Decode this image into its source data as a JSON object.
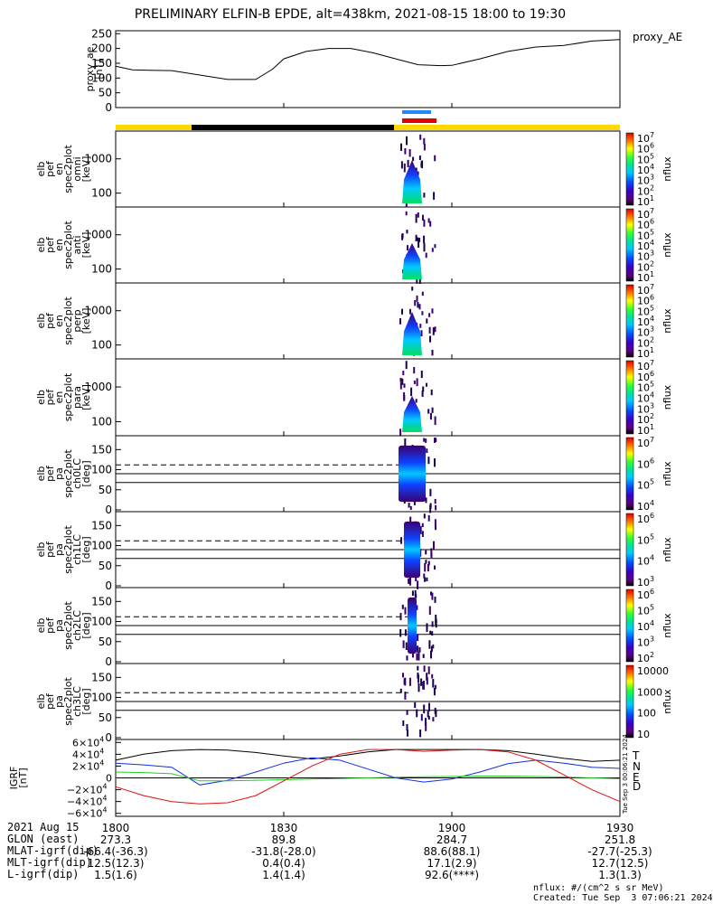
{
  "title": "PRELIMINARY ELFIN-B EPDE, alt=438km, 2021-08-15 18:00 to 19:30",
  "colors": {
    "phase_yellow": "#ffd800",
    "phase_black": "#000000",
    "marker_blue": "#1e88ff",
    "marker_red": "#e00000",
    "grf_T": "#000000",
    "grf_N": "#1030e0",
    "grf_E": "#22cc22",
    "grf_D": "#dd1111"
  },
  "chart_data": [
    {
      "type": "line",
      "name": "proxy_ae",
      "ylabel": "proxy_ae\n[nT]",
      "legend": "proxy_AE",
      "ylim": [
        0,
        260
      ],
      "yticks": [
        "250",
        "200",
        "150",
        "100",
        "50",
        "0"
      ],
      "x": [
        1800,
        1803,
        1806,
        1810,
        1815,
        1820,
        1825,
        1828,
        1830,
        1834,
        1838,
        1842,
        1846,
        1850,
        1854,
        1858,
        1900,
        1905,
        1910,
        1915,
        1920,
        1925,
        1930
      ],
      "values": [
        140,
        128,
        126,
        125,
        110,
        95,
        95,
        130,
        165,
        190,
        200,
        200,
        185,
        165,
        145,
        142,
        143,
        165,
        190,
        205,
        210,
        225,
        230
      ]
    },
    {
      "type": "heatmap",
      "name": "elb pef en spec2plot omni",
      "ylabel": "elb\npef\nen\nspec2plot\nomni\n[keV]",
      "scale": "log",
      "yticks": [
        "1000",
        "100"
      ],
      "zlabel": "nflux",
      "zticks": [
        "10^7",
        "10^6",
        "10^5",
        "10^4",
        "10^3",
        "10^2",
        "10^1"
      ]
    },
    {
      "type": "heatmap",
      "name": "elb pef en spec2plot anti",
      "ylabel": "elb\npef\nen\nspec2plot\nanti\n[keV]",
      "scale": "log",
      "yticks": [
        "1000",
        "100"
      ],
      "zlabel": "nflux",
      "zticks": [
        "10^7",
        "10^6",
        "10^5",
        "10^4",
        "10^3",
        "10^2",
        "10^1"
      ]
    },
    {
      "type": "heatmap",
      "name": "elb pef en spec2plot perp",
      "ylabel": "elb\npef\nen\nspec2plot\nperp\n[keV]",
      "scale": "log",
      "yticks": [
        "1000",
        "100"
      ],
      "zlabel": "nflux",
      "zticks": [
        "10^7",
        "10^6",
        "10^5",
        "10^4",
        "10^3",
        "10^2",
        "10^1"
      ]
    },
    {
      "type": "heatmap",
      "name": "elb pef en spec2plot para",
      "ylabel": "elb\npef\nen\nspec2plot\npara\n[keV]",
      "scale": "log",
      "yticks": [
        "1000",
        "100"
      ],
      "zlabel": "nflux",
      "zticks": [
        "10^7",
        "10^6",
        "10^5",
        "10^4",
        "10^3",
        "10^2",
        "10^1"
      ]
    },
    {
      "type": "heatmap",
      "name": "elb pef pa spec2plot ch0LC",
      "ylabel": "elb\npef\npa\nspec2plot\nch0LC\n[deg]",
      "ylim": [
        0,
        180
      ],
      "yticks": [
        "150",
        "100",
        "50",
        "0"
      ],
      "zlabel": "nflux",
      "zticks": [
        "10^7",
        "10^6",
        "10^5",
        "10^4"
      ]
    },
    {
      "type": "heatmap",
      "name": "elb pef pa spec2plot ch1LC",
      "ylabel": "elb\npef\npa\nspec2plot\nch1LC\n[deg]",
      "ylim": [
        0,
        180
      ],
      "yticks": [
        "150",
        "100",
        "50",
        "0"
      ],
      "zlabel": "nflux",
      "zticks": [
        "10^6",
        "10^5",
        "10^4",
        "10^3"
      ]
    },
    {
      "type": "heatmap",
      "name": "elb pef pa spec2plot ch2LC",
      "ylabel": "elb\npef\npa\nspec2plot\nch2LC\n[deg]",
      "ylim": [
        0,
        180
      ],
      "yticks": [
        "150",
        "100",
        "50",
        "0"
      ],
      "zlabel": "nflux",
      "zticks": [
        "10^6",
        "10^5",
        "10^4",
        "10^3",
        "10^2"
      ]
    },
    {
      "type": "heatmap",
      "name": "elb pef pa spec2plot ch3LC",
      "ylabel": "elb\npef\npa\nspec2plot\nch3LC\n[deg]",
      "ylim": [
        0,
        180
      ],
      "yticks": [
        "150",
        "100",
        "50",
        "0"
      ],
      "zlabel": "nflux",
      "zticks": [
        "10000",
        "1000",
        "100",
        "10"
      ]
    },
    {
      "type": "line",
      "name": "IGRF",
      "ylabel": "IGRF\n[nT]",
      "ylim": [
        -65000,
        65000
      ],
      "yticks": [
        "6×10^4",
        "4×10^4",
        "2×10^4",
        "0",
        "−2×10^4",
        "−4×10^4",
        "−6×10^4"
      ],
      "legend": [
        "T",
        "N",
        "E",
        "D"
      ],
      "side_stamp": "Tue Sep  3 00:06:21 2024",
      "x": [
        1800,
        1805,
        1810,
        1815,
        1820,
        1825,
        1830,
        1835,
        1840,
        1845,
        1850,
        1855,
        1900,
        1905,
        1910,
        1915,
        1920,
        1925,
        1930
      ],
      "series": [
        {
          "name": "T",
          "values": [
            30000,
            40000,
            46000,
            48000,
            47000,
            43000,
            37000,
            32000,
            37000,
            44000,
            48000,
            48000,
            48000,
            48000,
            46000,
            40000,
            33000,
            28000,
            30000
          ]
        },
        {
          "name": "N",
          "values": [
            25000,
            22000,
            18000,
            -12000,
            -4000,
            10000,
            25000,
            34000,
            30000,
            15000,
            0,
            -7000,
            -2000,
            10000,
            24000,
            30000,
            25000,
            18000,
            16000
          ]
        },
        {
          "name": "E",
          "values": [
            10000,
            9000,
            7000,
            -5000,
            -5000,
            -4000,
            -3000,
            -2000,
            -1000,
            0,
            1000,
            2000,
            2500,
            3000,
            3000,
            2500,
            1500,
            0,
            -1500
          ]
        },
        {
          "name": "D",
          "values": [
            -15000,
            -30000,
            -40000,
            -44000,
            -42000,
            -30000,
            -5000,
            20000,
            40000,
            48000,
            48000,
            45000,
            47000,
            48000,
            44000,
            30000,
            5000,
            -20000,
            -40000
          ]
        }
      ]
    }
  ],
  "xaxis": {
    "ticks": [
      "1800",
      "1830",
      "1900",
      "1930"
    ],
    "rows": [
      {
        "label": "2021 Aug 15",
        "values": [
          "1800",
          "1830",
          "1900",
          "1930"
        ]
      },
      {
        "label": "GLON (east)",
        "values": [
          "273.3",
          "89.8",
          "284.7",
          "251.8"
        ]
      },
      {
        "label": "MLAT-igrf(dip)",
        "values": [
          "-66.4(-36.3)",
          "-31.8(-28.0)",
          "88.6(88.1)",
          "-27.7(-25.3)"
        ]
      },
      {
        "label": "MLT-igrf(dip)",
        "values": [
          "12.5(12.3)",
          "0.4(0.4)",
          "17.1(2.9)",
          "12.7(12.5)"
        ]
      },
      {
        "label": "L-igrf(dip)",
        "values": [
          "1.5(1.6)",
          "1.4(1.4)",
          "92.6(****)",
          "1.3(1.3)"
        ]
      }
    ]
  },
  "footer": {
    "units": "nflux: #/(cm^2 s sr MeV)",
    "created": "Created: Tue Sep  3 07:06:21 2024"
  }
}
